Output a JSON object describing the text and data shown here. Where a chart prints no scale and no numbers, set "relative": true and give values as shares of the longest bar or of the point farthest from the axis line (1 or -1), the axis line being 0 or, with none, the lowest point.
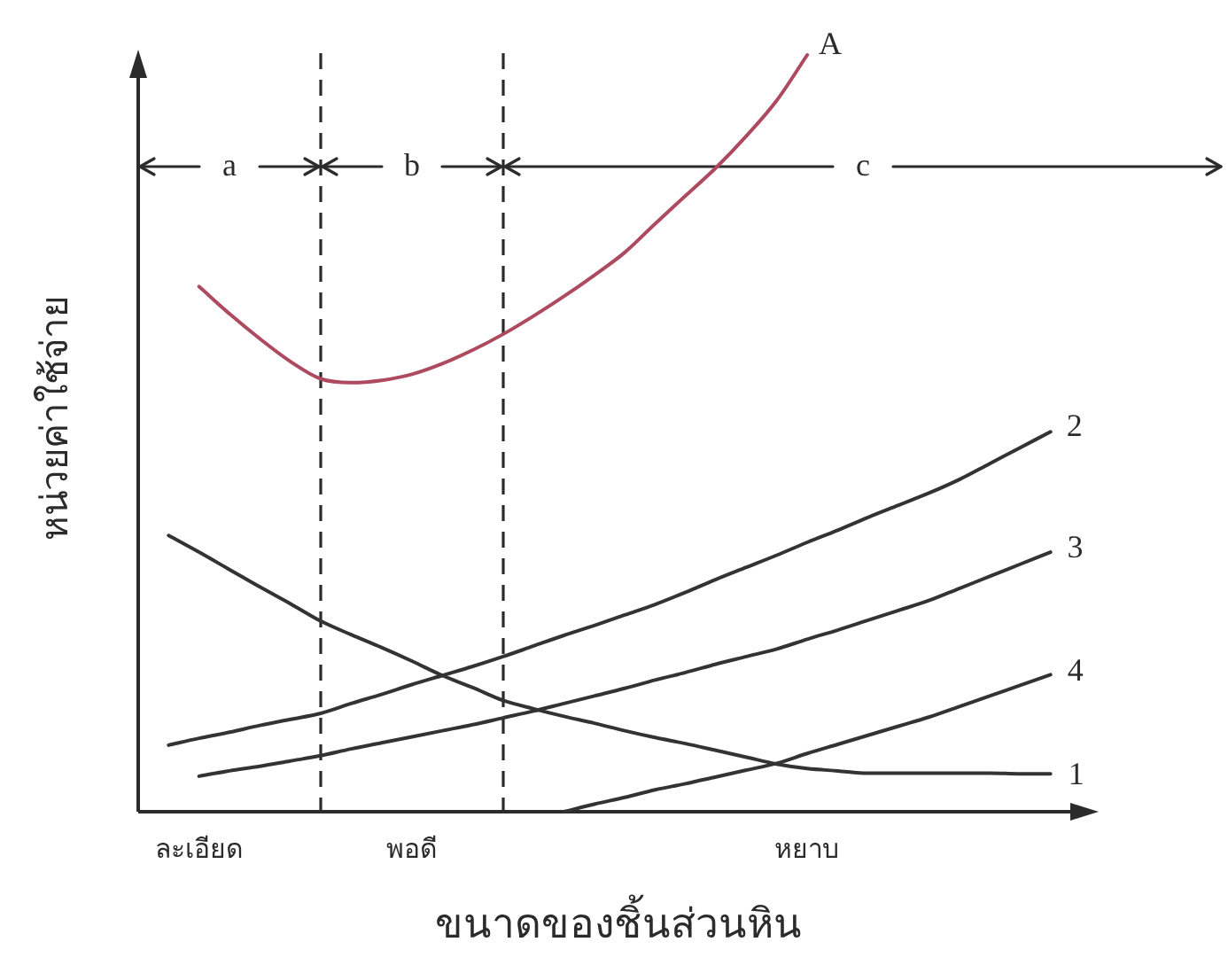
{
  "chart_data": {
    "type": "line",
    "relative": true,
    "xlabel": "ขนาดของชิ้นส่วนหิน",
    "ylabel": "หน่วยค่าใช้จ่าย",
    "categories": [
      null,
      null,
      "ละเอียด",
      null,
      null,
      null,
      null,
      null,
      null,
      "พอดี",
      null,
      null,
      null,
      null,
      null,
      null,
      null,
      null,
      null,
      null,
      null,
      null,
      "หยาบ",
      null,
      null,
      null,
      null,
      null,
      null,
      null,
      null,
      null
    ],
    "tick_labels": "x",
    "annotations": [
      "a",
      "b",
      "c"
    ],
    "series": [
      {
        "name": "A",
        "color": "#ad4a60",
        "values": [
          null,
          null,
          0.694,
          0.658,
          0.625,
          0.595,
          0.572,
          0.567,
          0.57,
          0.578,
          0.592,
          0.61,
          0.631,
          0.655,
          0.681,
          0.709,
          0.739,
          0.777,
          0.814,
          0.851,
          0.893,
          0.94,
          1.0,
          null,
          null,
          null,
          null,
          null,
          null,
          null,
          null,
          null
        ]
      },
      {
        "name": "1",
        "color": "#333333",
        "values": [
          null,
          0.365,
          0.343,
          0.32,
          0.297,
          0.275,
          0.252,
          0.234,
          0.217,
          0.199,
          0.18,
          0.164,
          0.147,
          0.136,
          0.126,
          0.117,
          0.107,
          0.098,
          0.09,
          0.081,
          0.072,
          0.063,
          0.057,
          0.054,
          0.051,
          0.051,
          0.051,
          0.051,
          0.051,
          0.05,
          0.05,
          null
        ]
      },
      {
        "name": "2",
        "color": "#333333",
        "values": [
          null,
          0.088,
          0.097,
          0.105,
          0.114,
          0.122,
          0.13,
          0.143,
          0.155,
          0.168,
          0.18,
          0.192,
          0.205,
          0.219,
          0.233,
          0.246,
          0.26,
          0.274,
          0.29,
          0.307,
          0.323,
          0.339,
          0.356,
          0.372,
          0.389,
          0.405,
          0.421,
          0.439,
          0.46,
          0.481,
          0.502,
          null
        ]
      },
      {
        "name": "3",
        "color": "#333333",
        "values": [
          null,
          null,
          0.047,
          0.054,
          0.06,
          0.067,
          0.074,
          0.083,
          0.091,
          0.099,
          0.107,
          0.115,
          0.124,
          0.133,
          0.143,
          0.153,
          0.163,
          0.174,
          0.184,
          0.195,
          0.205,
          0.215,
          0.228,
          0.24,
          0.253,
          0.266,
          0.279,
          0.295,
          0.311,
          0.327,
          0.343,
          null
        ]
      },
      {
        "name": "4",
        "color": "#333333",
        "values": [
          null,
          null,
          null,
          null,
          null,
          null,
          null,
          null,
          null,
          null,
          null,
          null,
          null,
          null,
          0,
          0.01,
          0.019,
          0.029,
          0.037,
          0.046,
          0.055,
          0.064,
          0.077,
          0.089,
          0.101,
          0.113,
          0.125,
          0.139,
          0.153,
          0.167,
          0.181,
          null
        ]
      }
    ]
  }
}
